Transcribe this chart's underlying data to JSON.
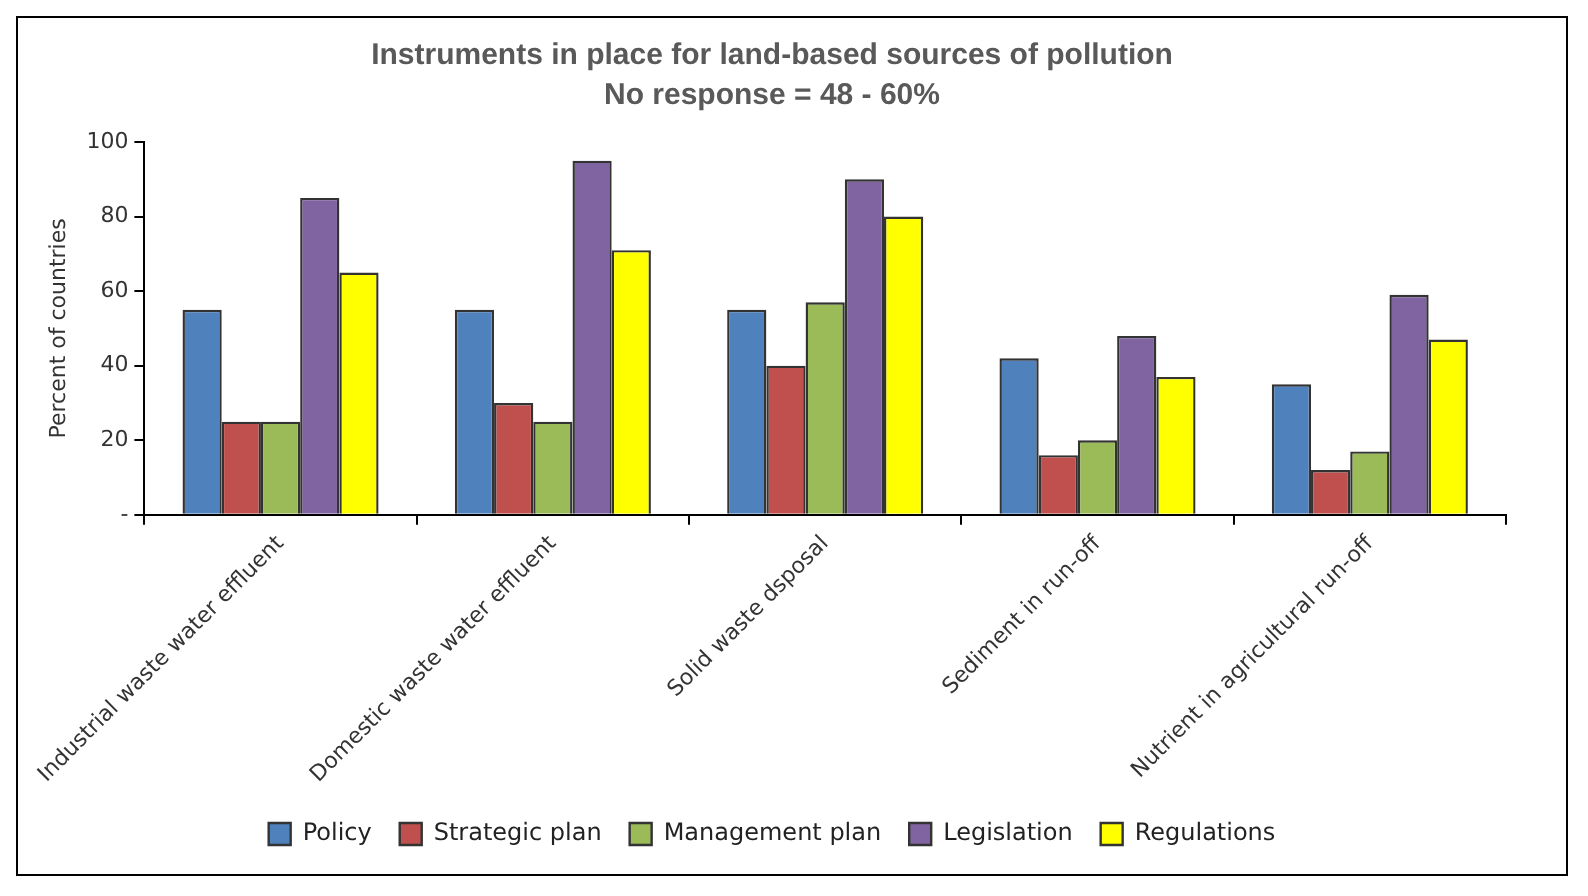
{
  "chart_data": {
    "type": "bar",
    "title": "Instruments in place for land-based sources of pollution",
    "subtitle": "No response = 48 - 60%",
    "ylabel": "Percent of countries",
    "categories": [
      "Industrial waste water effluent",
      "Domestic waste water effluent",
      "Solid waste dsposal",
      "Sediment in run-off",
      "Nutrient in agricultural run-off"
    ],
    "series": [
      {
        "name": "Policy",
        "color": "#4f81bd",
        "values": [
          55,
          55,
          55,
          42,
          35
        ]
      },
      {
        "name": "Strategic plan",
        "color": "#c0504d",
        "values": [
          25,
          30,
          40,
          16,
          12
        ]
      },
      {
        "name": "Management plan",
        "color": "#9bbb59",
        "values": [
          25,
          25,
          57,
          20,
          17
        ]
      },
      {
        "name": "Legislation",
        "color": "#8064a2",
        "values": [
          85,
          95,
          90,
          48,
          59
        ]
      },
      {
        "name": "Regulations",
        "color": "#ffff00",
        "values": [
          65,
          71,
          80,
          37,
          47
        ]
      }
    ],
    "ylim": [
      0,
      100
    ],
    "yticks": [
      {
        "value": 0,
        "label": "-"
      },
      20,
      40,
      60,
      80,
      100
    ],
    "grid": false,
    "legend": "bottom"
  }
}
